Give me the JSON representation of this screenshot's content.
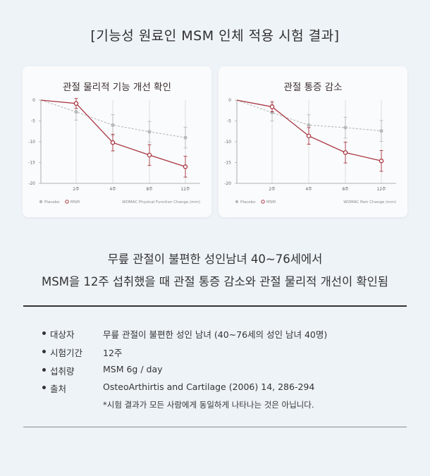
{
  "header": "[기능성 원료인 MSM 인체 적용 시험 결과]",
  "chart_data": [
    {
      "type": "line",
      "title": "관절 물리적 기능 개선 확인",
      "categories": [
        "",
        "2주",
        "4주",
        "8주",
        "12주"
      ],
      "ylim": [
        -20,
        0
      ],
      "yticks": [
        0,
        -5,
        -10,
        -15,
        -20
      ],
      "series": [
        {
          "name": "Placebo",
          "values": [
            0,
            -2.8,
            -6,
            -7.6,
            -9
          ],
          "color": "#b9b9b9",
          "errors": [
            0,
            2,
            2.5,
            2.5,
            2.5
          ]
        },
        {
          "name": "MSM",
          "values": [
            0,
            -0.8,
            -10.2,
            -13.2,
            -16
          ],
          "color": "#a8343f",
          "errors": [
            0,
            1.2,
            2,
            2.5,
            2.5
          ]
        }
      ],
      "legend": "bottom-left",
      "footnote": "WOMAC Physical Function Change (mm)",
      "grid": true
    },
    {
      "type": "line",
      "title": "관절 통증 감소",
      "categories": [
        "",
        "2주",
        "4주",
        "8주",
        "12주"
      ],
      "ylim": [
        -20,
        0
      ],
      "yticks": [
        0,
        -5,
        -10,
        -15,
        -20
      ],
      "series": [
        {
          "name": "Placebo",
          "values": [
            0,
            -3,
            -6,
            -6.6,
            -7.4
          ],
          "color": "#b9b9b9",
          "errors": [
            0,
            2,
            2.5,
            2.5,
            2.5
          ]
        },
        {
          "name": "MSM",
          "values": [
            0,
            -1.6,
            -8.6,
            -12.6,
            -14.6
          ],
          "color": "#a8343f",
          "errors": [
            0,
            1.2,
            2,
            2.5,
            2.5
          ]
        }
      ],
      "legend": "bottom-left",
      "footnote": "WOMAC Pain Change (mm)",
      "grid": true
    }
  ],
  "headline": {
    "line1": "무릎 관절이 불편한 성인남녀 40~76세에서",
    "line2": "MSM을 12주 섭취했을 때 관절 통증 감소와 관절 물리적 개선이 확인됨"
  },
  "info": [
    {
      "label": "대상자",
      "value": "무릎 관절이 불편한 성인 남녀 (40~76세의 성인 남녀 40명)"
    },
    {
      "label": "시험기간",
      "value": "12주"
    },
    {
      "label": "섭취량",
      "value": "MSM 6g / day"
    },
    {
      "label": "출처",
      "value": "OsteoArthirtis and Cartilage (2006) 14, 286-294"
    }
  ],
  "note": "*시험 결과가 모든 사람에게 동일하게 나타나는 것은 아닙니다."
}
